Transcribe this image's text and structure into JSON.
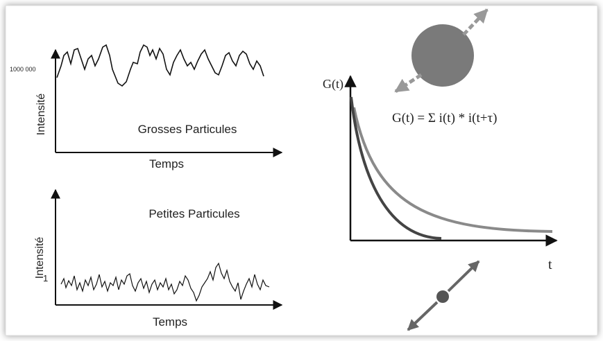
{
  "top_plot": {
    "y_tick": "1000 000",
    "y_label": "Intensité",
    "title": "Grosses Particules",
    "x_label": "Temps"
  },
  "bottom_plot": {
    "y_tick": "1",
    "y_label": "Intensité",
    "title": "Petites Particules",
    "x_label": "Temps"
  },
  "correlation_plot": {
    "y_label": "G(t)",
    "formula": "G(t) = Σ i(t) * i(t+τ)",
    "x_label": "t"
  }
}
